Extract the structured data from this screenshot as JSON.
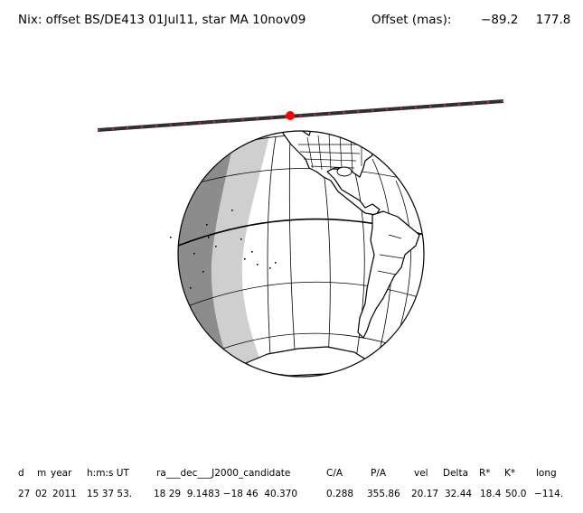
{
  "header": {
    "title": "Nix: offset BS/DE413 01Jul11, star MA 10nov09",
    "offset_label": "Offset (mas):",
    "offset_ra": "−89.2",
    "offset_dec": "177.8"
  },
  "table": {
    "columns": [
      "d",
      "m",
      "year",
      "h:m:s UT",
      "ra___dec___J2000_candidate",
      "C/A",
      "P/A",
      "vel",
      "Delta",
      "R*",
      "K*",
      "long"
    ],
    "values": [
      "27",
      "02",
      "2011",
      "15 37 53.",
      "18 29  9.1483 −18 46  40.370",
      "0.288",
      "355.86",
      "20.17",
      "32.44",
      "18.4",
      "50.0",
      "−114."
    ]
  },
  "colors": {
    "shadow_dark": "#8c8c8c",
    "shadow_light": "#cfcfcf",
    "track": "#303030",
    "track_marks": "#ff2020",
    "event_point": "#ff0000"
  }
}
